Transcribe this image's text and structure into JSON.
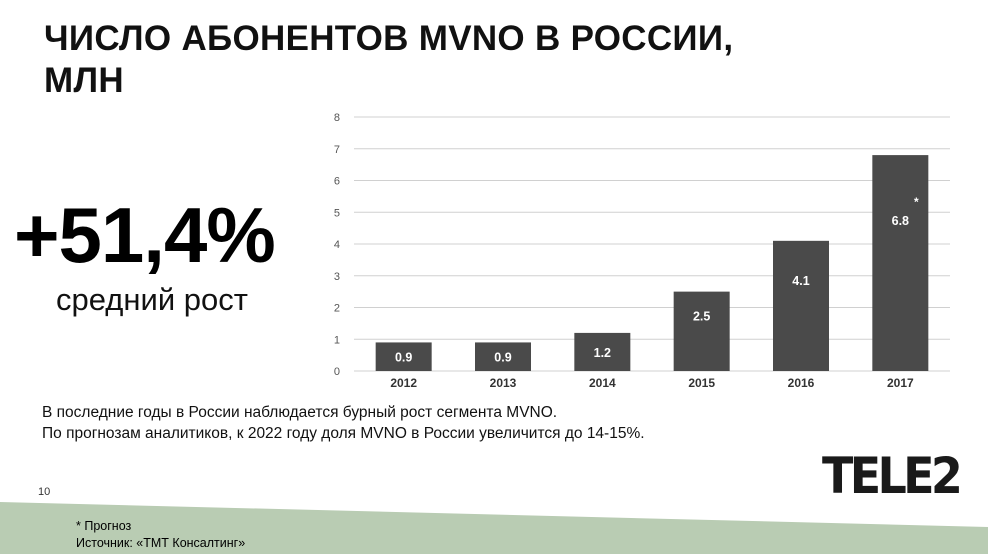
{
  "slide": {
    "title_line1": "ЧИСЛО АБОНЕНТОВ MVNO В РОССИИ,",
    "title_line2": "МЛН",
    "big_stat": "+51,4%",
    "big_stat_caption": "средний рост",
    "body_line1": "В последние годы в России наблюдается бурный рост сегмента MVNO.",
    "body_line2": "По прогнозам аналитиков, к 2022 году доля MVNO в России увеличится до 14-15%.",
    "page_number": "10",
    "footnote_forecast": "* Прогноз",
    "footnote_source": "Источник: «ТМТ Консалтинг»",
    "logo_text": "TELE2"
  },
  "colors": {
    "bar": "#4a4a4a",
    "grid": "#d0d0d0",
    "footer_band": "#b9ccb3",
    "axis_text": "#555555"
  },
  "chart_data": {
    "type": "bar",
    "categories": [
      "2012",
      "2013",
      "2014",
      "2015",
      "2016",
      "2017"
    ],
    "values": [
      0.9,
      0.9,
      1.2,
      2.5,
      4.1,
      6.8
    ],
    "data_labels": [
      "0.9",
      "0.9",
      "1.2",
      "2.5",
      "4.1",
      "6.8"
    ],
    "annotations": [
      {
        "category": "2017",
        "text": "*"
      }
    ],
    "title": "",
    "xlabel": "",
    "ylabel": "",
    "ylim": [
      0,
      8
    ],
    "yticks": [
      0,
      1,
      2,
      3,
      4,
      5,
      6,
      7,
      8
    ],
    "grid": true,
    "legend": "none"
  }
}
